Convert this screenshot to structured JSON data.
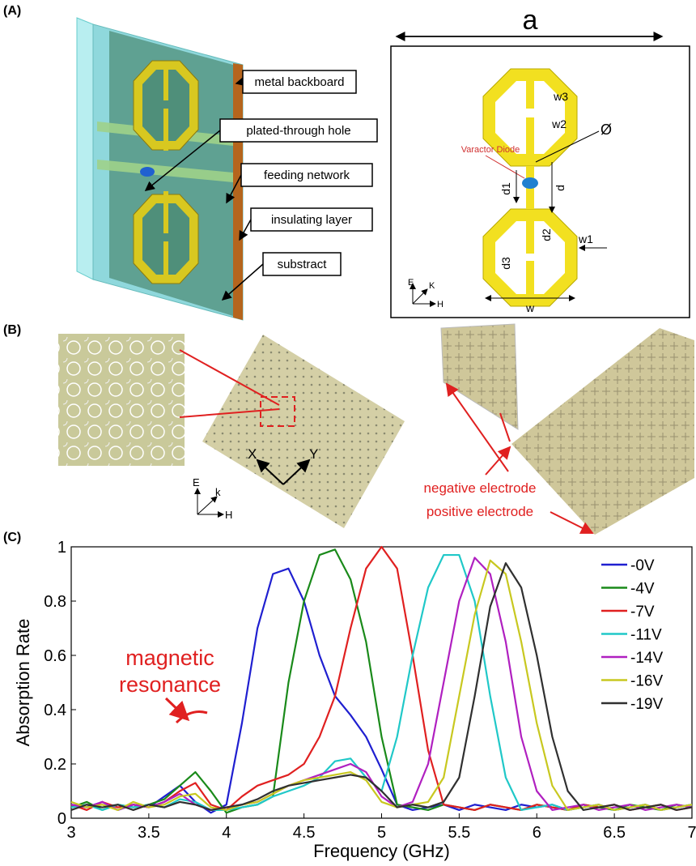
{
  "panels": [
    "(A)",
    "(B)",
    "(C)"
  ],
  "structure_3d": {
    "labels": [
      "metal backboard",
      "plated-through hole",
      "feeding network",
      "insulating layer",
      "substract"
    ]
  },
  "unit_cell": {
    "period": "a",
    "varactor": "Varactor Diode",
    "dims": [
      "w3",
      "w2",
      "Ø",
      "d1",
      "d",
      "d2",
      "w1",
      "d3",
      "w"
    ],
    "axes": [
      "E",
      "K",
      "H"
    ]
  },
  "photos": {
    "axes": [
      "X",
      "Y"
    ],
    "field_axes": [
      "E",
      "k",
      "H"
    ],
    "electrodes": [
      "negative electrode",
      "positive electrode"
    ]
  },
  "chart_data": {
    "type": "line",
    "xlabel": "Frequency (GHz)",
    "ylabel": "Absorption Rate",
    "annotation": "magnetic resonance",
    "xlim": [
      3,
      7
    ],
    "ylim": [
      0,
      1
    ],
    "xticks": [
      3,
      3.5,
      4,
      4.5,
      5,
      5.5,
      6,
      6.5,
      7
    ],
    "yticks": [
      0,
      0.2,
      0.4,
      0.6,
      0.8,
      1
    ],
    "legend": "upper right",
    "x": [
      3,
      3.1,
      3.2,
      3.3,
      3.4,
      3.5,
      3.6,
      3.7,
      3.8,
      3.9,
      4,
      4.1,
      4.2,
      4.3,
      4.4,
      4.5,
      4.6,
      4.7,
      4.8,
      4.9,
      5,
      5.1,
      5.2,
      5.3,
      5.4,
      5.5,
      5.6,
      5.7,
      5.8,
      5.9,
      6,
      6.1,
      6.2,
      6.3,
      6.4,
      6.5,
      6.6,
      6.7,
      6.8,
      6.9,
      7
    ],
    "series": [
      {
        "name": "-0V",
        "color": "#1f1fd0",
        "values": [
          0.05,
          0.04,
          0.06,
          0.03,
          0.05,
          0.04,
          0.08,
          0.12,
          0.06,
          0.02,
          0.05,
          0.35,
          0.7,
          0.9,
          0.92,
          0.8,
          0.6,
          0.45,
          0.38,
          0.3,
          0.18,
          0.05,
          0.03,
          0.04,
          0.05,
          0.03,
          0.05,
          0.04,
          0.03,
          0.05,
          0.04,
          0.05,
          0.03,
          0.04,
          0.05,
          0.03,
          0.04,
          0.05,
          0.03,
          0.04,
          0.05
        ]
      },
      {
        "name": "-4V",
        "color": "#1a8a1a",
        "values": [
          0.04,
          0.06,
          0.03,
          0.05,
          0.04,
          0.05,
          0.07,
          0.12,
          0.17,
          0.1,
          0.02,
          0.04,
          0.05,
          0.08,
          0.5,
          0.8,
          0.97,
          0.99,
          0.88,
          0.65,
          0.3,
          0.05,
          0.04,
          0.03,
          0.05,
          0.04,
          0.03,
          0.05,
          0.04,
          0.03,
          0.05,
          0.04,
          0.03,
          0.05,
          0.04,
          0.03,
          0.05,
          0.04,
          0.03,
          0.05,
          0.04
        ]
      },
      {
        "name": "-7V",
        "color": "#e02020",
        "values": [
          0.05,
          0.03,
          0.06,
          0.04,
          0.05,
          0.04,
          0.06,
          0.1,
          0.13,
          0.05,
          0.03,
          0.08,
          0.12,
          0.14,
          0.16,
          0.2,
          0.3,
          0.45,
          0.7,
          0.92,
          1.0,
          0.92,
          0.6,
          0.25,
          0.05,
          0.04,
          0.03,
          0.05,
          0.04,
          0.03,
          0.05,
          0.04,
          0.03,
          0.05,
          0.04,
          0.05,
          0.03,
          0.04,
          0.05,
          0.03,
          0.04
        ]
      },
      {
        "name": "-11V",
        "color": "#20c8c8",
        "values": [
          0.04,
          0.05,
          0.03,
          0.05,
          0.04,
          0.05,
          0.04,
          0.07,
          0.06,
          0.03,
          0.03,
          0.04,
          0.05,
          0.08,
          0.1,
          0.12,
          0.15,
          0.21,
          0.22,
          0.15,
          0.1,
          0.3,
          0.6,
          0.85,
          0.97,
          0.97,
          0.8,
          0.45,
          0.15,
          0.03,
          0.04,
          0.05,
          0.03,
          0.04,
          0.05,
          0.03,
          0.04,
          0.05,
          0.03,
          0.04,
          0.05
        ]
      },
      {
        "name": "-14V",
        "color": "#b020c0",
        "values": [
          0.05,
          0.04,
          0.06,
          0.03,
          0.05,
          0.04,
          0.06,
          0.09,
          0.05,
          0.03,
          0.04,
          0.05,
          0.06,
          0.09,
          0.12,
          0.14,
          0.16,
          0.18,
          0.2,
          0.17,
          0.08,
          0.04,
          0.06,
          0.2,
          0.5,
          0.8,
          0.96,
          0.9,
          0.65,
          0.3,
          0.1,
          0.03,
          0.04,
          0.05,
          0.03,
          0.04,
          0.05,
          0.03,
          0.04,
          0.05,
          0.04
        ]
      },
      {
        "name": "-16V",
        "color": "#c8c820",
        "values": [
          0.06,
          0.04,
          0.05,
          0.03,
          0.06,
          0.04,
          0.05,
          0.08,
          0.09,
          0.04,
          0.03,
          0.05,
          0.06,
          0.09,
          0.12,
          0.14,
          0.15,
          0.16,
          0.17,
          0.14,
          0.06,
          0.04,
          0.05,
          0.06,
          0.15,
          0.45,
          0.75,
          0.95,
          0.9,
          0.65,
          0.35,
          0.12,
          0.03,
          0.04,
          0.05,
          0.03,
          0.04,
          0.05,
          0.03,
          0.04,
          0.05
        ]
      },
      {
        "name": "-19V",
        "color": "#303030",
        "values": [
          0.03,
          0.05,
          0.04,
          0.05,
          0.03,
          0.05,
          0.04,
          0.06,
          0.05,
          0.03,
          0.04,
          0.05,
          0.07,
          0.1,
          0.12,
          0.13,
          0.14,
          0.15,
          0.16,
          0.15,
          0.1,
          0.04,
          0.05,
          0.04,
          0.06,
          0.15,
          0.45,
          0.78,
          0.94,
          0.85,
          0.6,
          0.3,
          0.1,
          0.03,
          0.04,
          0.05,
          0.03,
          0.04,
          0.05,
          0.03,
          0.04
        ]
      }
    ]
  }
}
